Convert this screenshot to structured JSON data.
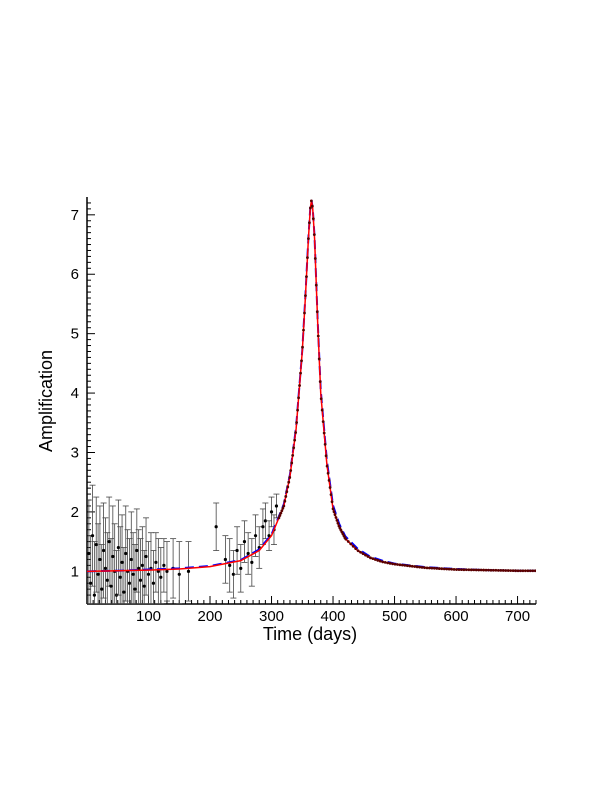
{
  "chart_data": {
    "type": "line",
    "title": "",
    "xlabel": "Time (days)",
    "ylabel": "Amplification",
    "xlim": [
      0,
      730
    ],
    "ylim": [
      0.45,
      7.3
    ],
    "x_ticks": [
      100,
      200,
      300,
      400,
      500,
      600,
      700
    ],
    "y_ticks": [
      1,
      2,
      3,
      4,
      5,
      6,
      7
    ],
    "grid": false,
    "legend": "none",
    "peak": {
      "t0": 365,
      "amax": 7.25
    },
    "series": [
      {
        "kind": "model-solid",
        "color": "#ff0000",
        "x": [
          0,
          50,
          100,
          150,
          200,
          250,
          280,
          300,
          320,
          330,
          340,
          350,
          355,
          360,
          363,
          365,
          367,
          370,
          375,
          380,
          390,
          400,
          410,
          420,
          440,
          460,
          480,
          500,
          550,
          600,
          650,
          700,
          730
        ],
        "y": [
          1.0,
          1.01,
          1.02,
          1.04,
          1.08,
          1.18,
          1.35,
          1.6,
          2.1,
          2.6,
          3.4,
          4.7,
          5.6,
          6.6,
          7.1,
          7.25,
          7.1,
          6.6,
          5.2,
          4.0,
          2.8,
          2.05,
          1.75,
          1.55,
          1.35,
          1.23,
          1.16,
          1.12,
          1.06,
          1.03,
          1.02,
          1.01,
          1.01
        ]
      },
      {
        "kind": "model-dashed",
        "color": "#0000ff",
        "x": [
          0,
          50,
          100,
          150,
          200,
          250,
          280,
          300,
          320,
          330,
          340,
          350,
          355,
          360,
          363,
          365,
          367,
          370,
          375,
          380,
          390,
          400,
          410,
          420,
          440,
          460,
          480,
          500,
          550,
          600,
          650,
          700,
          730
        ],
        "y": [
          1.0,
          1.01,
          1.03,
          1.05,
          1.09,
          1.19,
          1.37,
          1.62,
          2.13,
          2.63,
          3.43,
          4.72,
          5.62,
          6.62,
          7.11,
          7.25,
          7.11,
          6.62,
          5.23,
          4.05,
          2.86,
          2.11,
          1.8,
          1.59,
          1.38,
          1.25,
          1.18,
          1.13,
          1.07,
          1.04,
          1.02,
          1.01,
          1.01
        ]
      },
      {
        "kind": "data-with-errorbars",
        "color": "#000000",
        "x": [
          3,
          6,
          9,
          12,
          15,
          18,
          21,
          24,
          27,
          30,
          33,
          36,
          39,
          42,
          45,
          48,
          51,
          54,
          57,
          60,
          63,
          66,
          69,
          72,
          75,
          78,
          81,
          84,
          87,
          90,
          93,
          96,
          100,
          104,
          108,
          112,
          116,
          120,
          125,
          130,
          140,
          150,
          165,
          210,
          225,
          232,
          238,
          244,
          250,
          256,
          262,
          268,
          274,
          280,
          286,
          290,
          296,
          300,
          304,
          308
        ],
        "y": [
          1.3,
          0.8,
          1.6,
          0.6,
          1.45,
          0.95,
          1.2,
          0.7,
          1.35,
          1.05,
          0.85,
          1.5,
          0.75,
          1.25,
          1.0,
          0.6,
          1.4,
          0.9,
          1.15,
          0.65,
          1.3,
          1.0,
          0.8,
          1.2,
          0.95,
          0.7,
          1.35,
          1.05,
          0.85,
          1.1,
          0.75,
          1.25,
          0.95,
          1.05,
          0.8,
          1.15,
          1.0,
          0.9,
          1.1,
          1.0,
          1.05,
          0.95,
          1.0,
          1.75,
          1.2,
          1.1,
          0.95,
          1.35,
          1.05,
          1.5,
          1.3,
          1.15,
          1.6,
          1.4,
          1.75,
          1.85,
          1.6,
          2.0,
          1.7,
          2.1
        ],
        "err": [
          0.9,
          0.8,
          0.85,
          0.9,
          0.8,
          0.85,
          0.9,
          0.75,
          0.8,
          0.85,
          0.8,
          0.75,
          0.8,
          0.85,
          0.8,
          0.75,
          0.8,
          0.85,
          0.8,
          0.75,
          0.8,
          0.7,
          0.75,
          0.8,
          0.7,
          0.75,
          0.7,
          0.65,
          0.7,
          0.65,
          0.6,
          0.65,
          0.55,
          0.6,
          0.55,
          0.5,
          0.55,
          0.5,
          0.45,
          0.5,
          0.5,
          0.55,
          0.5,
          0.4,
          0.4,
          0.45,
          0.4,
          0.4,
          0.4,
          0.35,
          0.35,
          0.4,
          0.35,
          0.35,
          0.3,
          0.3,
          0.25,
          0.25,
          0.25,
          0.2
        ]
      }
    ]
  }
}
